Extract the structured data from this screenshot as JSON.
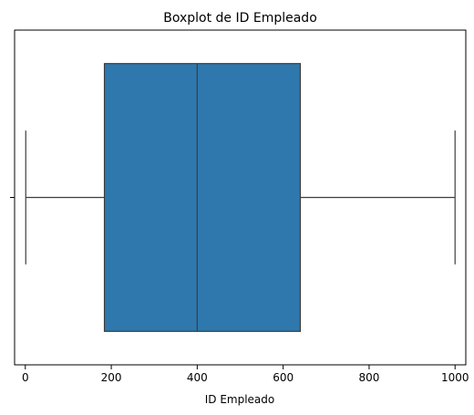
{
  "chart_data": {
    "type": "boxplot",
    "title": "Boxplot de ID Empleado",
    "xlabel": "ID Empleado",
    "ylabel": "",
    "xlim": [
      -25,
      1025
    ],
    "xticks": [
      0,
      200,
      400,
      600,
      800,
      1000
    ],
    "xtick_labels": [
      "0",
      "200",
      "400",
      "600",
      "800",
      "1000"
    ],
    "series": [
      {
        "values": {
          "min": 1,
          "q1": 184,
          "median": 400,
          "q3": 640,
          "max": 1000
        }
      }
    ],
    "grid": false,
    "legend": false,
    "colors": {
      "box_fill": "#2f78ad",
      "box_edge": "#3d3d3d",
      "whisker": "#3d3d3d",
      "axis": "#000000",
      "background": "#ffffff"
    }
  }
}
